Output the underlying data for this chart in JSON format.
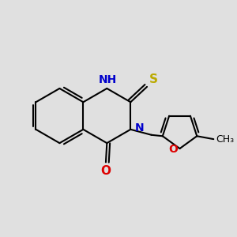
{
  "background_color": "#e0e0e0",
  "bond_color": "#000000",
  "bond_width": 1.5,
  "atom_colors": {
    "N": "#0000cc",
    "S": "#bbaa00",
    "O_carbonyl": "#dd0000",
    "O_furan": "#dd0000",
    "C": "#000000"
  },
  "font_size_atoms": 10,
  "font_size_methyl": 9,
  "xlim": [
    -1.8,
    2.2
  ],
  "ylim": [
    -1.8,
    1.8
  ]
}
